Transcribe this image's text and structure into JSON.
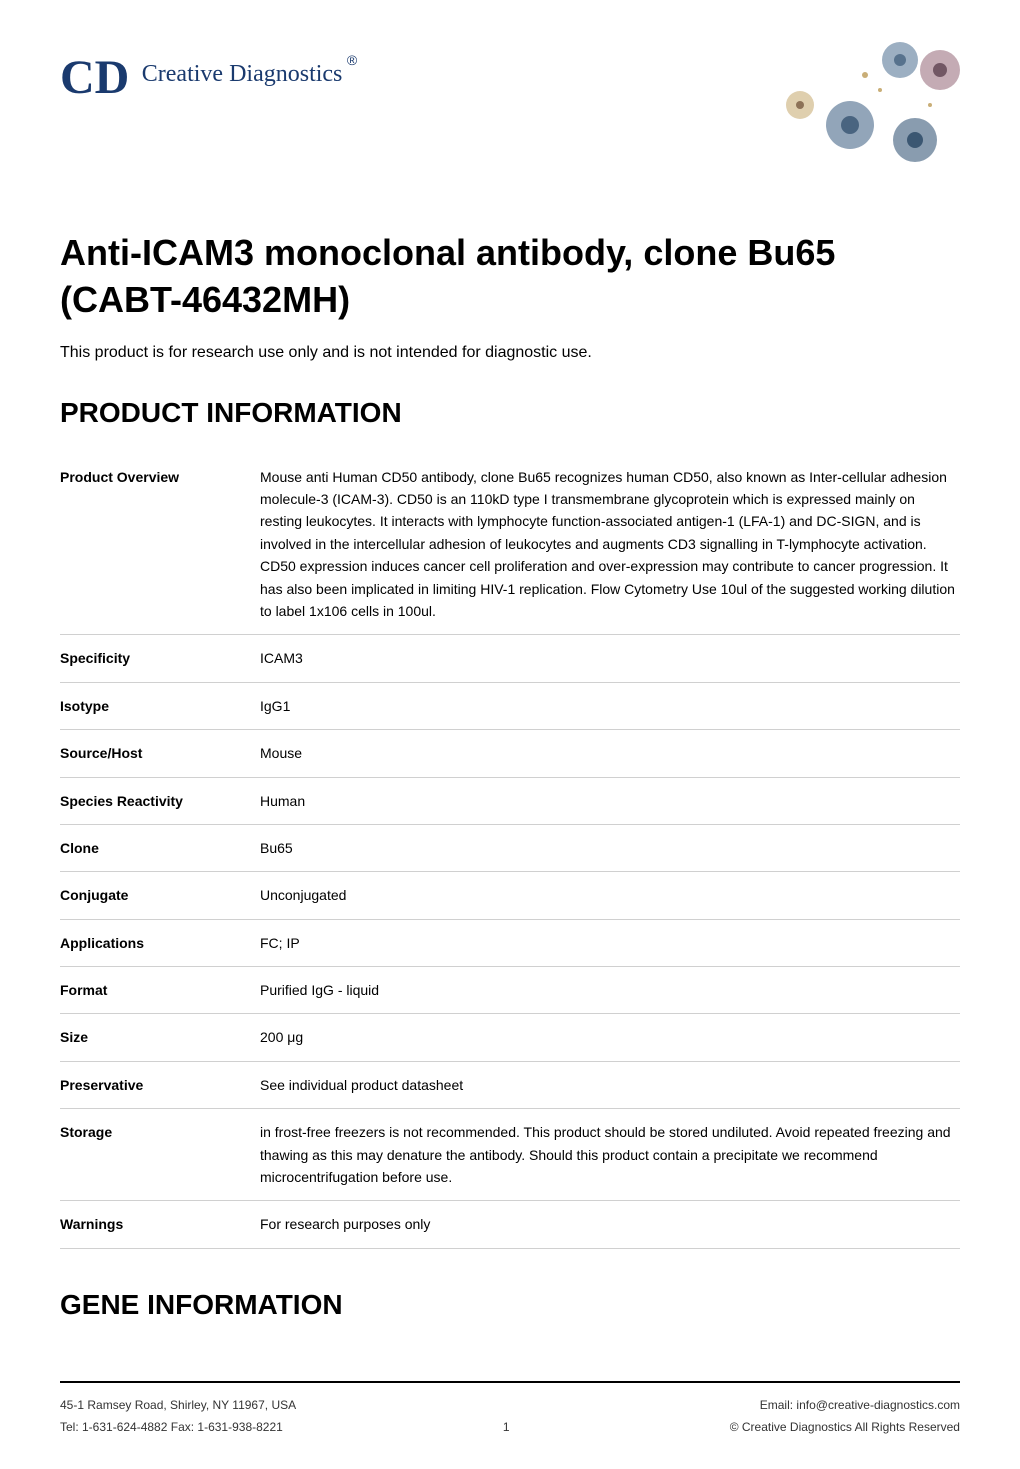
{
  "logo": {
    "cd": "CD",
    "text": "Creative Diagnostics",
    "reg": "®"
  },
  "title": "Anti-ICAM3 monoclonal antibody, clone Bu65 (CABT-46432MH)",
  "subtitle": "This product is for research use only and is not intended for diagnostic use.",
  "sections": {
    "product_info": {
      "heading": "PRODUCT INFORMATION",
      "rows": [
        {
          "label": "Product Overview",
          "value": "Mouse anti Human CD50 antibody, clone Bu65 recognizes human CD50, also known as Inter-cellular adhesion molecule-3 (ICAM-3). CD50 is an 110kD type I transmembrane glycoprotein which is expressed mainly on resting leukocytes. It interacts with lymphocyte function-associated antigen-1 (LFA-1) and DC-SIGN, and is involved in the intercellular adhesion of leukocytes and augments CD3 signalling in T-lymphocyte activation. CD50 expression induces cancer cell proliferation and over-expression may contribute to cancer progression. It has also been implicated in limiting HIV-1 replication. Flow Cytometry Use 10ul of the suggested working dilution to label 1x106 cells in 100ul."
        },
        {
          "label": "Specificity",
          "value": "ICAM3"
        },
        {
          "label": "Isotype",
          "value": "IgG1"
        },
        {
          "label": "Source/Host",
          "value": "Mouse"
        },
        {
          "label": "Species Reactivity",
          "value": "Human"
        },
        {
          "label": "Clone",
          "value": "Bu65"
        },
        {
          "label": "Conjugate",
          "value": "Unconjugated"
        },
        {
          "label": "Applications",
          "value": "FC; IP"
        },
        {
          "label": "Format",
          "value": "Purified IgG - liquid"
        },
        {
          "label": "Size",
          "value": "200 μg"
        },
        {
          "label": "Preservative",
          "value": "See individual product datasheet"
        },
        {
          "label": "Storage",
          "value": "in frost-free freezers is not recommended. This product should be stored undiluted. Avoid repeated freezing and thawing as this may denature the antibody. Should this product contain a precipitate we recommend microcentrifugation before use."
        },
        {
          "label": "Warnings",
          "value": "For research purposes only"
        }
      ]
    },
    "gene_info": {
      "heading": "GENE INFORMATION"
    }
  },
  "footer": {
    "address": "45-1 Ramsey Road, Shirley, NY 11967, USA",
    "tel": "Tel: 1-631-624-4882 Fax: 1-631-938-8221",
    "page": "1",
    "email": "Email: info@creative-diagnostics.com",
    "copyright": "© Creative Diagnostics All Rights Reserved"
  },
  "colors": {
    "logo_blue": "#1a3a6e",
    "text_black": "#000000",
    "border_gray": "#d0d0d0",
    "footer_text": "#333333"
  },
  "header_image": {
    "cell_colors": [
      "#5a7a9a",
      "#3a5a7a",
      "#8a5a6a",
      "#4a6a8a"
    ],
    "dot_color": "#c0a060"
  }
}
